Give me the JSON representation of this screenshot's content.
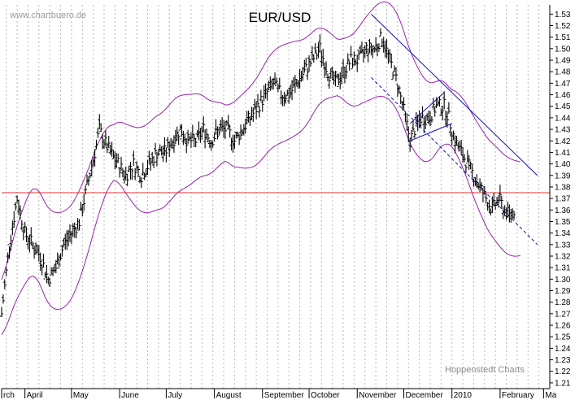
{
  "header": {
    "watermark": "www.chartbuero.de",
    "credit": "Hoppenstedt Charts"
  },
  "chart_data": {
    "type": "ohlc",
    "title": "EUR/USD",
    "xlabel": "",
    "ylabel": "",
    "y_range": [
      1.205,
      1.538
    ],
    "y_axis_side": "right",
    "y_ticks": [
      1.21,
      1.22,
      1.23,
      1.24,
      1.25,
      1.26,
      1.27,
      1.28,
      1.29,
      1.3,
      1.31,
      1.32,
      1.33,
      1.34,
      1.35,
      1.36,
      1.37,
      1.38,
      1.39,
      1.4,
      1.41,
      1.42,
      1.43,
      1.44,
      1.45,
      1.46,
      1.47,
      1.48,
      1.49,
      1.5,
      1.51,
      1.52,
      1.53
    ],
    "x_range_days": [
      0,
      353
    ],
    "x_tick_labels": [
      {
        "label": "rch",
        "day": 0
      },
      {
        "label": "April",
        "day": 15
      },
      {
        "label": "May",
        "day": 45
      },
      {
        "label": "June",
        "day": 76
      },
      {
        "label": "July",
        "day": 106
      },
      {
        "label": "August",
        "day": 137
      },
      {
        "label": "September",
        "day": 168
      },
      {
        "label": "October",
        "day": 198
      },
      {
        "label": "November",
        "day": 229
      },
      {
        "label": "December",
        "day": 259
      },
      {
        "label": "2010",
        "day": 290
      },
      {
        "label": "February",
        "day": 321
      },
      {
        "label": "Ma",
        "day": 349
      }
    ],
    "price_path": [
      [
        0,
        1.27
      ],
      [
        5,
        1.33
      ],
      [
        10,
        1.37
      ],
      [
        15,
        1.34
      ],
      [
        20,
        1.33
      ],
      [
        25,
        1.32
      ],
      [
        30,
        1.3
      ],
      [
        35,
        1.31
      ],
      [
        40,
        1.33
      ],
      [
        45,
        1.34
      ],
      [
        50,
        1.35
      ],
      [
        55,
        1.38
      ],
      [
        60,
        1.41
      ],
      [
        63,
        1.43
      ],
      [
        66,
        1.42
      ],
      [
        70,
        1.41
      ],
      [
        75,
        1.4
      ],
      [
        80,
        1.39
      ],
      [
        85,
        1.4
      ],
      [
        90,
        1.39
      ],
      [
        95,
        1.4
      ],
      [
        100,
        1.41
      ],
      [
        105,
        1.41
      ],
      [
        110,
        1.42
      ],
      [
        115,
        1.43
      ],
      [
        120,
        1.42
      ],
      [
        125,
        1.42
      ],
      [
        130,
        1.43
      ],
      [
        135,
        1.42
      ],
      [
        140,
        1.43
      ],
      [
        145,
        1.43
      ],
      [
        150,
        1.42
      ],
      [
        155,
        1.43
      ],
      [
        160,
        1.44
      ],
      [
        165,
        1.45
      ],
      [
        170,
        1.46
      ],
      [
        175,
        1.47
      ],
      [
        180,
        1.46
      ],
      [
        185,
        1.46
      ],
      [
        190,
        1.47
      ],
      [
        195,
        1.48
      ],
      [
        200,
        1.49
      ],
      [
        205,
        1.5
      ],
      [
        210,
        1.48
      ],
      [
        215,
        1.47
      ],
      [
        220,
        1.48
      ],
      [
        225,
        1.49
      ],
      [
        230,
        1.49
      ],
      [
        235,
        1.5
      ],
      [
        240,
        1.5
      ],
      [
        245,
        1.51
      ],
      [
        250,
        1.49
      ],
      [
        255,
        1.47
      ],
      [
        260,
        1.44
      ],
      [
        263,
        1.42
      ],
      [
        266,
        1.43
      ],
      [
        270,
        1.44
      ],
      [
        275,
        1.44
      ],
      [
        280,
        1.45
      ],
      [
        285,
        1.45
      ],
      [
        288,
        1.44
      ],
      [
        292,
        1.42
      ],
      [
        296,
        1.41
      ],
      [
        300,
        1.4
      ],
      [
        304,
        1.39
      ],
      [
        308,
        1.38
      ],
      [
        312,
        1.37
      ],
      [
        316,
        1.36
      ],
      [
        320,
        1.37
      ],
      [
        324,
        1.36
      ],
      [
        327,
        1.355
      ],
      [
        330,
        1.36
      ]
    ],
    "bollinger_band_width": 0.03,
    "horizontal_line": {
      "y": 1.375,
      "color": "#e03030"
    },
    "trendlines": [
      {
        "from": [
          238,
          1.53
        ],
        "to": [
          345,
          1.39
        ],
        "style": "solid",
        "color": "#1010c0"
      },
      {
        "from": [
          238,
          1.475
        ],
        "to": [
          345,
          1.33
        ],
        "style": "dashed",
        "color": "#1010c0"
      },
      {
        "from": [
          263,
          1.42
        ],
        "to": [
          290,
          1.435
        ],
        "style": "solid",
        "color": "#1010c0"
      },
      {
        "from": [
          263,
          1.435
        ],
        "to": [
          285,
          1.462
        ],
        "style": "solid",
        "color": "#1010c0"
      }
    ],
    "colors": {
      "bars": "#000000",
      "bands": "#9a22b0",
      "gridlines": "#b8b8b8",
      "axis": "#000000"
    }
  }
}
